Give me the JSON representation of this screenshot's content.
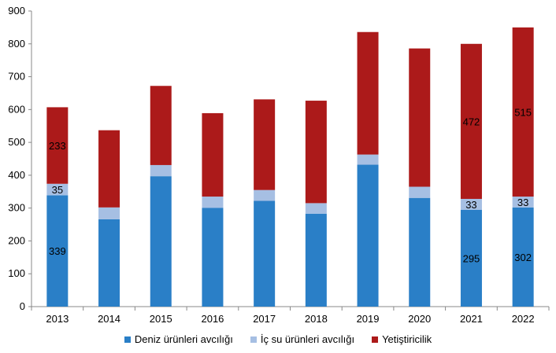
{
  "chart_data": {
    "type": "bar",
    "stacked": true,
    "categories": [
      "2013",
      "2014",
      "2015",
      "2016",
      "2017",
      "2018",
      "2019",
      "2020",
      "2021",
      "2022"
    ],
    "series": [
      {
        "name": "Deniz ürünleri avcılığı",
        "color": "#2a7fc7",
        "values": [
          339,
          266,
          397,
          301,
          322,
          283,
          432,
          331,
          295,
          302
        ]
      },
      {
        "name": "İç su ürünleri avcılığı",
        "color": "#a6bfe3",
        "values": [
          35,
          36,
          34,
          34,
          33,
          32,
          31,
          34,
          33,
          33
        ]
      },
      {
        "name": "Yetiştiricilik",
        "color": "#ac1a1a",
        "values": [
          233,
          235,
          241,
          254,
          276,
          312,
          373,
          421,
          472,
          515
        ]
      }
    ],
    "data_labels": [
      {
        "series": 0,
        "category": 0,
        "text": "339"
      },
      {
        "series": 1,
        "category": 0,
        "text": "35"
      },
      {
        "series": 2,
        "category": 0,
        "text": "233"
      },
      {
        "series": 1,
        "category": 8,
        "text": "33"
      },
      {
        "series": 2,
        "category": 8,
        "text": "472"
      },
      {
        "series": 0,
        "category": 8,
        "text": "295"
      },
      {
        "series": 1,
        "category": 9,
        "text": "33"
      },
      {
        "series": 2,
        "category": 9,
        "text": "515"
      },
      {
        "series": 0,
        "category": 9,
        "text": "302"
      }
    ],
    "ylim": [
      0,
      900
    ],
    "yticks": [
      "0",
      "100",
      "200",
      "300",
      "400",
      "500",
      "600",
      "700",
      "800",
      "900"
    ],
    "grid": false,
    "legend_position": "bottom"
  }
}
